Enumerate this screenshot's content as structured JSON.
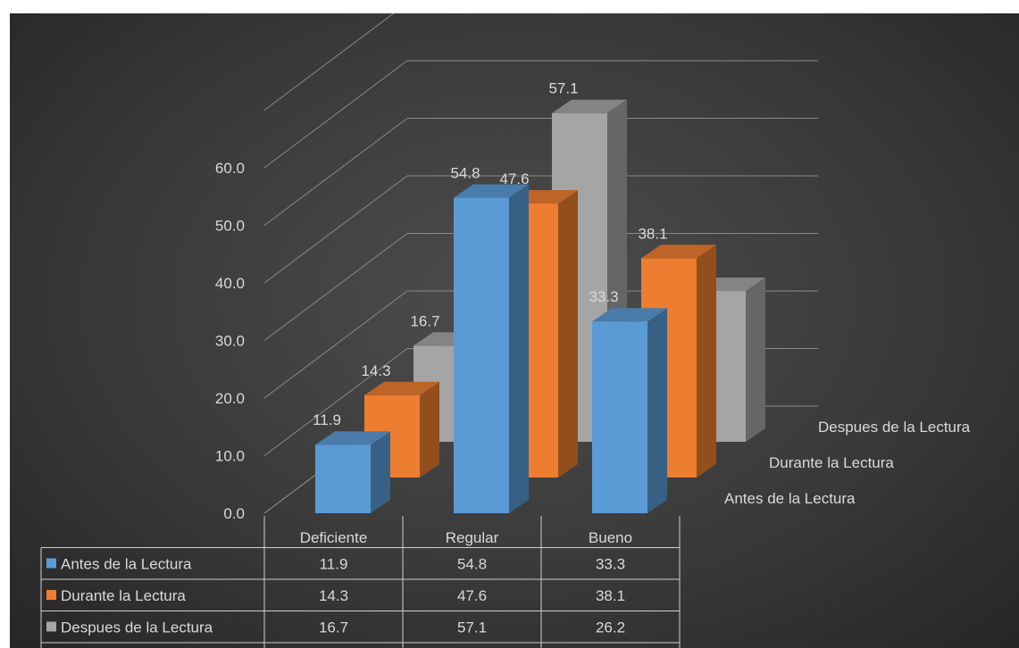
{
  "chart_data": {
    "type": "bar",
    "categories": [
      "Deficiente",
      "Regular",
      "Bueno"
    ],
    "series": [
      {
        "name": "Antes de la Lectura",
        "values": [
          11.9,
          54.8,
          33.3
        ],
        "color": "#5b9bd5"
      },
      {
        "name": "Durante la Lectura",
        "values": [
          14.3,
          47.6,
          38.1
        ],
        "color": "#ed7d31"
      },
      {
        "name": "Despues de la Lectura",
        "values": [
          16.7,
          57.1,
          26.2
        ],
        "color": "#a5a5a5"
      }
    ],
    "y_ticks": [
      "0.0",
      "10.0",
      "20.0",
      "30.0",
      "40.0",
      "50.0",
      "60.0"
    ],
    "ylim": [
      0,
      60
    ],
    "grid": true,
    "three_d": true,
    "data_table": true,
    "background": "#404040"
  }
}
